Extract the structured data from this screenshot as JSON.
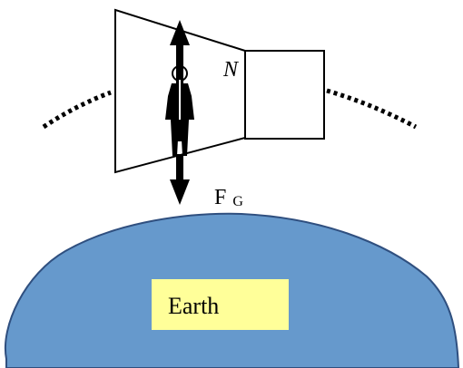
{
  "labels": {
    "normal_force": "N",
    "gravity_force_main": "F",
    "gravity_force_sub": "G",
    "planet": "Earth"
  },
  "colors": {
    "earth_fill": "#6699cc",
    "earth_label_bg": "#ffff99",
    "line": "#000000"
  }
}
